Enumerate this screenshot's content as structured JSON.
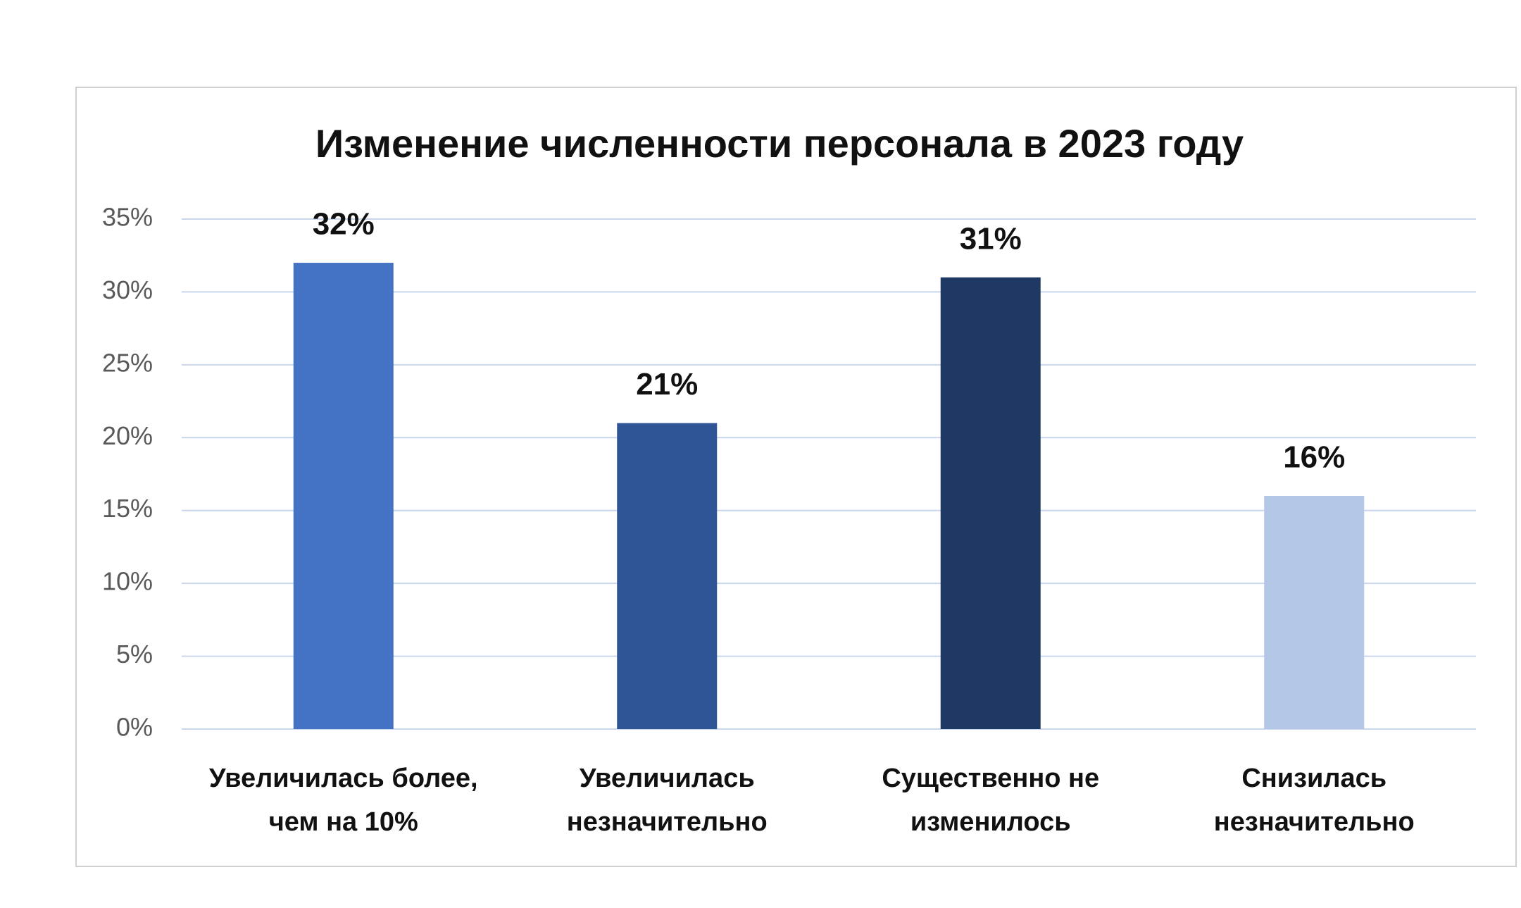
{
  "chart_data": {
    "type": "bar",
    "title": "Изменение численности персонала в 2023 году",
    "categories": [
      "Увеличилась более, чем на 10%",
      "Увеличилась незначительно",
      "Существенно не изменилось",
      "Снизилась незначительно"
    ],
    "values": [
      32,
      21,
      31,
      16
    ],
    "value_labels": [
      "32%",
      "21%",
      "31%",
      "16%"
    ],
    "colors": [
      "#4472c4",
      "#2f5597",
      "#203864",
      "#b4c7e7"
    ],
    "ylim": [
      0,
      35
    ],
    "yticks": [
      {
        "value": 0,
        "label": "0%"
      },
      {
        "value": 5,
        "label": "5%"
      },
      {
        "value": 10,
        "label": "10%"
      },
      {
        "value": 15,
        "label": "15%"
      },
      {
        "value": 20,
        "label": "20%"
      },
      {
        "value": 25,
        "label": "25%"
      },
      {
        "value": 30,
        "label": "30%"
      },
      {
        "value": 35,
        "label": "35%"
      }
    ],
    "grid": true
  }
}
